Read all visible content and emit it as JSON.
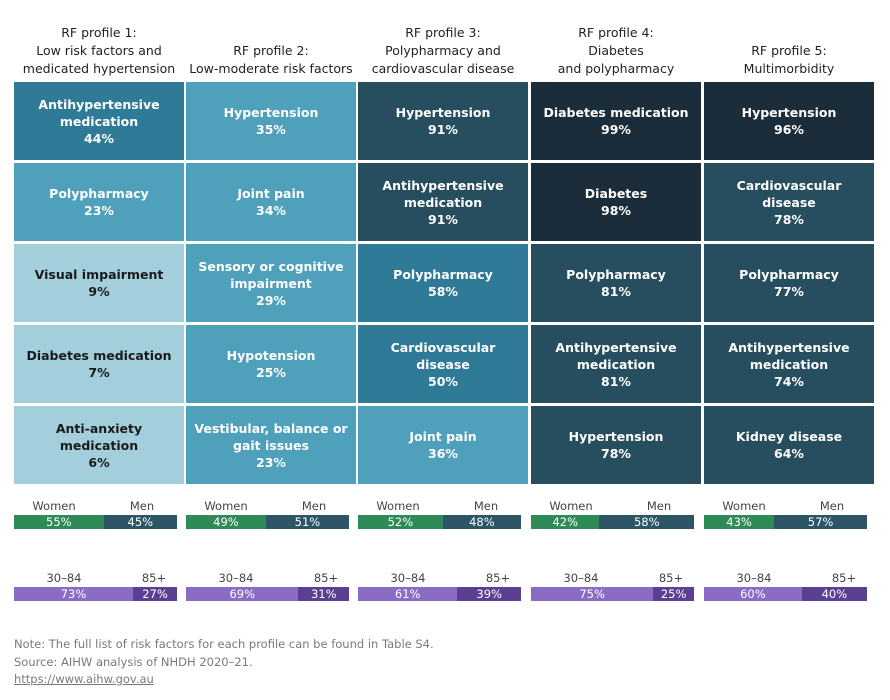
{
  "chart_data": {
    "type": "heatmap",
    "profiles": [
      {
        "title_lines": [
          "RF profile 1:",
          "Low risk factors and",
          "medicated hypertension"
        ],
        "cells": [
          {
            "label_lines": [
              "Antihypertensive",
              "medication"
            ],
            "pct": "44%",
            "value": 44
          },
          {
            "label_lines": [
              "Polypharmacy"
            ],
            "pct": "23%",
            "value": 23
          },
          {
            "label_lines": [
              "Visual impairment"
            ],
            "pct": "9%",
            "value": 9
          },
          {
            "label_lines": [
              "Diabetes medication"
            ],
            "pct": "7%",
            "value": 7
          },
          {
            "label_lines": [
              "Anti-anxiety medication"
            ],
            "pct": "6%",
            "value": 6
          }
        ],
        "sex": {
          "women": 55,
          "men": 45,
          "women_label": "55%",
          "men_label": "45%"
        },
        "age": {
          "younger": 73,
          "older": 27,
          "younger_label": "73%",
          "older_label": "27%"
        }
      },
      {
        "title_lines": [
          "RF profile 2:",
          "Low-moderate risk factors"
        ],
        "cells": [
          {
            "label_lines": [
              "Hypertension"
            ],
            "pct": "35%",
            "value": 35
          },
          {
            "label_lines": [
              "Joint pain"
            ],
            "pct": "34%",
            "value": 34
          },
          {
            "label_lines": [
              "Sensory or cognitive",
              "impairment"
            ],
            "pct": "29%",
            "value": 29
          },
          {
            "label_lines": [
              "Hypotension"
            ],
            "pct": "25%",
            "value": 25
          },
          {
            "label_lines": [
              "Vestibular, balance or",
              "gait issues"
            ],
            "pct": "23%",
            "value": 23
          }
        ],
        "sex": {
          "women": 49,
          "men": 51,
          "women_label": "49%",
          "men_label": "51%"
        },
        "age": {
          "younger": 69,
          "older": 31,
          "younger_label": "69%",
          "older_label": "31%"
        }
      },
      {
        "title_lines": [
          "RF profile 3:",
          "Polypharmacy and",
          "cardiovascular disease"
        ],
        "cells": [
          {
            "label_lines": [
              "Hypertension"
            ],
            "pct": "91%",
            "value": 91
          },
          {
            "label_lines": [
              "Antihypertensive",
              "medication"
            ],
            "pct": "91%",
            "value": 91
          },
          {
            "label_lines": [
              "Polypharmacy"
            ],
            "pct": "58%",
            "value": 58
          },
          {
            "label_lines": [
              "Cardiovascular disease"
            ],
            "pct": "50%",
            "value": 50
          },
          {
            "label_lines": [
              "Joint pain"
            ],
            "pct": "36%",
            "value": 36
          }
        ],
        "sex": {
          "women": 52,
          "men": 48,
          "women_label": "52%",
          "men_label": "48%"
        },
        "age": {
          "younger": 61,
          "older": 39,
          "younger_label": "61%",
          "older_label": "39%"
        }
      },
      {
        "title_lines": [
          "RF profile 4:",
          "Diabetes",
          "and polypharmacy"
        ],
        "cells": [
          {
            "label_lines": [
              "Diabetes medication"
            ],
            "pct": "99%",
            "value": 99
          },
          {
            "label_lines": [
              "Diabetes"
            ],
            "pct": "98%",
            "value": 98
          },
          {
            "label_lines": [
              "Polypharmacy"
            ],
            "pct": "81%",
            "value": 81
          },
          {
            "label_lines": [
              "Antihypertensive",
              "medication"
            ],
            "pct": "81%",
            "value": 81
          },
          {
            "label_lines": [
              "Hypertension"
            ],
            "pct": "78%",
            "value": 78
          }
        ],
        "sex": {
          "women": 42,
          "men": 58,
          "women_label": "42%",
          "men_label": "58%"
        },
        "age": {
          "younger": 75,
          "older": 25,
          "younger_label": "75%",
          "older_label": "25%"
        }
      },
      {
        "title_lines": [
          "RF profile 5:",
          "Multimorbidity"
        ],
        "cells": [
          {
            "label_lines": [
              "Hypertension"
            ],
            "pct": "96%",
            "value": 96
          },
          {
            "label_lines": [
              "Cardiovascular disease"
            ],
            "pct": "78%",
            "value": 78
          },
          {
            "label_lines": [
              "Polypharmacy"
            ],
            "pct": "77%",
            "value": 77
          },
          {
            "label_lines": [
              "Antihypertensive",
              "medication"
            ],
            "pct": "74%",
            "value": 74
          },
          {
            "label_lines": [
              "Kidney disease"
            ],
            "pct": "64%",
            "value": 64
          }
        ],
        "sex": {
          "women": 43,
          "men": 57,
          "women_label": "43%",
          "men_label": "57%"
        },
        "age": {
          "younger": 60,
          "older": 40,
          "younger_label": "60%",
          "older_label": "40%"
        }
      }
    ],
    "sex_labels": {
      "women": "Women",
      "men": "Men"
    },
    "age_labels": {
      "younger": "30–84",
      "older": "85+"
    },
    "colors": {
      "women": "#2e8b57",
      "men": "#2c5566",
      "age_younger": "#8a6cc4",
      "age_older": "#5b3f93",
      "scale": [
        "#a3cedc",
        "#4fa0bb",
        "#2f7a97",
        "#264e5f",
        "#1b2d3a"
      ]
    }
  },
  "footnotes": {
    "note": "Note: The full list of risk factors for each profile can be found in Table S4.",
    "source": "Source: AIHW analysis of NHDH 2020–21.",
    "link": "https://www.aihw.gov.au"
  }
}
